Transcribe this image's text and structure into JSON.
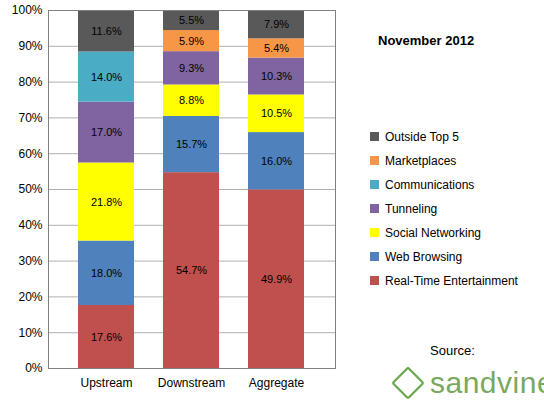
{
  "chart_data": {
    "type": "bar",
    "title": "November 2012",
    "source_label": "Source:",
    "source": "sandvine",
    "stacked": true,
    "data_labels": true,
    "legend": "right",
    "grid": true,
    "categories": [
      "Upstream",
      "Downstream",
      "Aggregate"
    ],
    "ylim": [
      0,
      100
    ],
    "yticks": [
      {
        "value": 0,
        "label": "0%"
      },
      {
        "value": 10,
        "label": "10%"
      },
      {
        "value": 20,
        "label": "20%"
      },
      {
        "value": 30,
        "label": "30%"
      },
      {
        "value": 40,
        "label": "40%"
      },
      {
        "value": 50,
        "label": "50%"
      },
      {
        "value": 60,
        "label": "60%"
      },
      {
        "value": 70,
        "label": "70%"
      },
      {
        "value": 80,
        "label": "80%"
      },
      {
        "value": 90,
        "label": "90%"
      },
      {
        "value": 100,
        "label": "100%"
      }
    ],
    "series": [
      {
        "name": "Real-Time Entertainment",
        "color": "#c0504d",
        "values": [
          17.6,
          54.7,
          49.9
        ],
        "value_labels": [
          "17.6%",
          "54.7%",
          "49.9%"
        ]
      },
      {
        "name": "Web Browsing",
        "color": "#4f81bd",
        "values": [
          18.0,
          15.7,
          16.0
        ],
        "value_labels": [
          "18.0%",
          "15.7%",
          "16.0%"
        ]
      },
      {
        "name": "Social Networking",
        "color": "#ffff00",
        "values": [
          21.8,
          8.8,
          10.5
        ],
        "value_labels": [
          "21.8%",
          "8.8%",
          "10.5%"
        ]
      },
      {
        "name": "Tunneling",
        "color": "#8064a2",
        "values": [
          17.0,
          9.3,
          10.3
        ],
        "value_labels": [
          "17.0%",
          "9.3%",
          "10.3%"
        ]
      },
      {
        "name": "Communications",
        "color": "#4bacc6",
        "values": [
          14.0,
          null,
          null
        ],
        "value_labels": [
          "14.0%",
          null,
          null
        ]
      },
      {
        "name": "Marketplaces",
        "color": "#f79646",
        "values": [
          null,
          5.9,
          5.4
        ],
        "value_labels": [
          null,
          "5.9%",
          "5.4%"
        ]
      },
      {
        "name": "Outside Top 5",
        "color": "#595959",
        "values": [
          11.6,
          5.5,
          7.9
        ],
        "value_labels": [
          "11.6%",
          "5.5%",
          "7.9%"
        ]
      }
    ]
  }
}
